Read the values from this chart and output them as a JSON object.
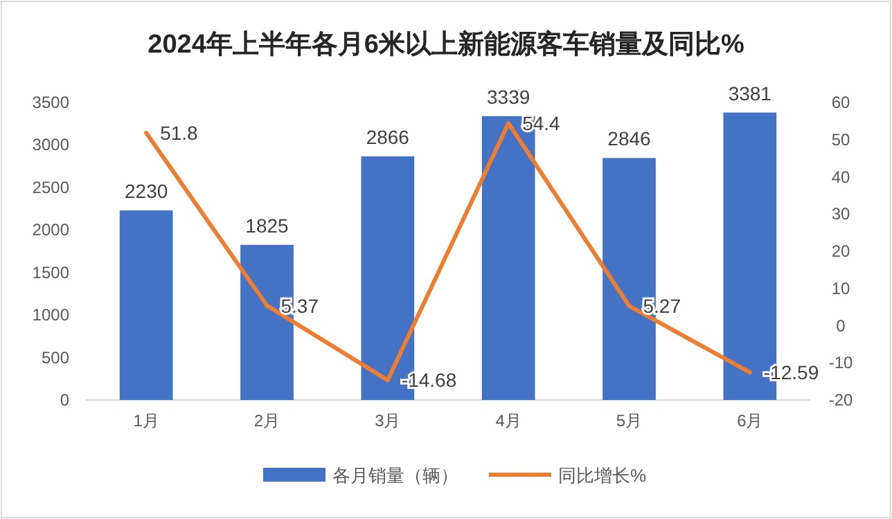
{
  "chart_data": {
    "type": "bar",
    "title": "2024年上半年各月6米以上新能源客车销量及同比%",
    "categories": [
      "1月",
      "2月",
      "3月",
      "4月",
      "5月",
      "6月"
    ],
    "series": [
      {
        "name": "各月销量（辆）",
        "color": "#4472c4",
        "values": [
          2230,
          1825,
          2866,
          3339,
          2846,
          3381
        ]
      },
      {
        "name": "同比增长%",
        "type": "line",
        "axis": "y2",
        "color": "#ed7d31",
        "values": [
          51.8,
          5.37,
          -14.68,
          54.4,
          5.27,
          -12.59
        ]
      }
    ],
    "ylim": [
      0,
      3500
    ],
    "yticks": [
      0,
      500,
      1000,
      1500,
      2000,
      2500,
      3000,
      3500
    ],
    "y2lim": [
      -20,
      60
    ],
    "y2ticks": [
      -20,
      -10,
      0,
      10,
      20,
      30,
      40,
      50,
      60
    ],
    "data_labels": true,
    "legend": "bottom",
    "grid": false,
    "marker": "none",
    "line_style": "solid"
  }
}
